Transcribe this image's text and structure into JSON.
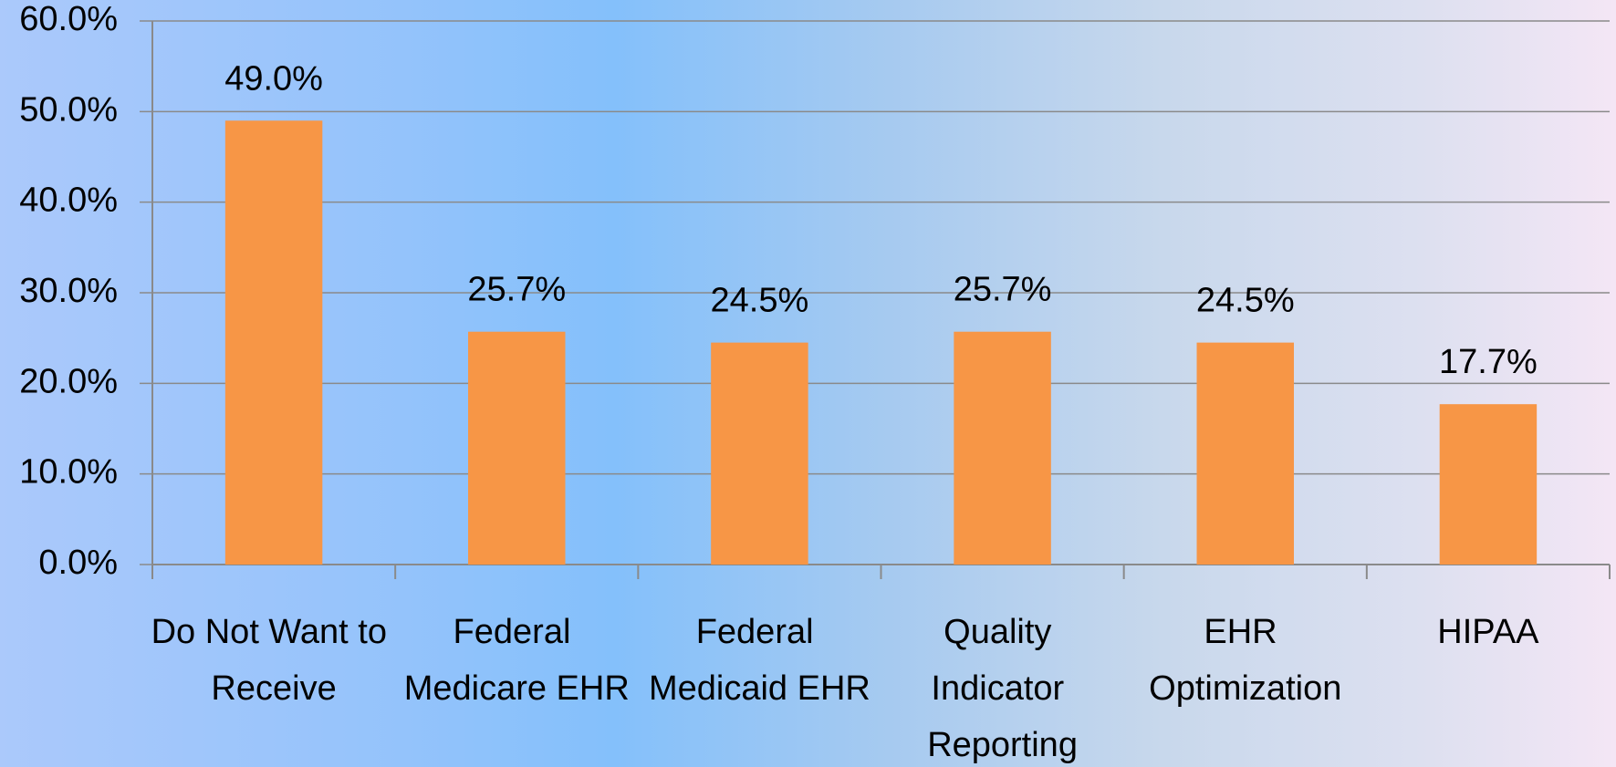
{
  "chart_data": {
    "type": "bar",
    "categories": [
      "Do Not Want to Receive",
      "Federal Medicare EHR",
      "Federal Medicaid EHR",
      "Quality Indicator Reporting",
      "EHR Optimization",
      "HIPAA"
    ],
    "values": [
      49.0,
      25.7,
      24.5,
      25.7,
      24.5,
      17.7
    ],
    "value_labels": [
      "49.0%",
      "25.7%",
      "24.5%",
      "25.7%",
      "24.5%",
      "17.7%"
    ],
    "color": "#f79646",
    "ylim": [
      0,
      60
    ],
    "yticks": [
      {
        "value": 0,
        "label": "0.0%"
      },
      {
        "value": 10,
        "label": "10.0%"
      },
      {
        "value": 20,
        "label": "20.0%"
      },
      {
        "value": 30,
        "label": "30.0%"
      },
      {
        "value": 40,
        "label": "40.0%"
      },
      {
        "value": 50,
        "label": "50.0%"
      },
      {
        "value": 60,
        "label": "60.0%"
      }
    ],
    "grid": true
  }
}
